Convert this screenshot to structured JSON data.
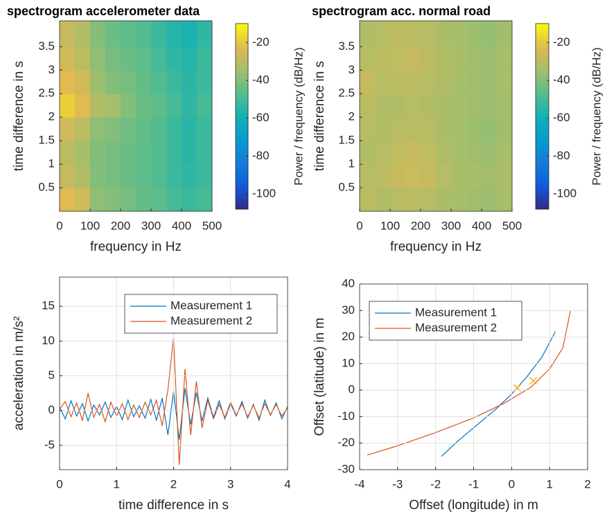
{
  "chart_data": [
    {
      "type": "heatmap",
      "title": "spectrogram accelerometer data",
      "xlabel": "frequency in Hz",
      "ylabel": "time difference in s",
      "colorbar_label": "Power / frequency (dB/Hz)",
      "colormap": "parula",
      "x": [
        25,
        75,
        125,
        175,
        225,
        275,
        325,
        375,
        425,
        475
      ],
      "y": [
        0.25,
        0.75,
        1.25,
        1.75,
        2.25,
        2.75,
        3.25,
        3.75
      ],
      "z": [
        [
          -22,
          -26,
          -38,
          -40,
          -42,
          -45,
          -46,
          -50,
          -52,
          -50
        ],
        [
          -28,
          -32,
          -40,
          -42,
          -44,
          -46,
          -48,
          -52,
          -54,
          -52
        ],
        [
          -30,
          -34,
          -40,
          -42,
          -44,
          -46,
          -48,
          -52,
          -55,
          -52
        ],
        [
          -26,
          -30,
          -38,
          -40,
          -43,
          -45,
          -48,
          -52,
          -55,
          -52
        ],
        [
          -18,
          -22,
          -32,
          -34,
          -40,
          -44,
          -46,
          -50,
          -54,
          -50
        ],
        [
          -22,
          -26,
          -36,
          -40,
          -42,
          -45,
          -48,
          -52,
          -55,
          -52
        ],
        [
          -26,
          -30,
          -38,
          -42,
          -44,
          -46,
          -50,
          -54,
          -56,
          -52
        ],
        [
          -28,
          -32,
          -40,
          -44,
          -46,
          -48,
          -52,
          -56,
          -58,
          -54
        ]
      ],
      "xlim": [
        0,
        500
      ],
      "xticks": [
        0,
        100,
        200,
        300,
        400,
        500
      ],
      "ylim": [
        0,
        4.05
      ],
      "yticks": [
        0.5,
        1,
        1.5,
        2,
        2.5,
        3,
        3.5
      ],
      "clim": [
        -108,
        -10
      ],
      "cticks": [
        -100,
        -80,
        -60,
        -40,
        -20
      ],
      "grid": false
    },
    {
      "type": "heatmap",
      "title": "spectrogram acc. normal road",
      "xlabel": "frequency in Hz",
      "ylabel": "time difference in s",
      "colorbar_label": "Power / frequency (dB/Hz)",
      "colormap": "parula",
      "x": [
        25,
        75,
        125,
        175,
        225,
        275,
        325,
        375,
        425,
        475
      ],
      "y": [
        0.25,
        0.75,
        1.25,
        1.75,
        2.25,
        2.75,
        3.25,
        3.75
      ],
      "z": [
        [
          -30,
          -32,
          -31,
          -30,
          -31,
          -33,
          -34,
          -35,
          -36,
          -34
        ],
        [
          -31,
          -30,
          -28,
          -27,
          -28,
          -31,
          -33,
          -34,
          -35,
          -33
        ],
        [
          -32,
          -31,
          -29,
          -28,
          -29,
          -32,
          -34,
          -35,
          -36,
          -34
        ],
        [
          -31,
          -32,
          -31,
          -30,
          -31,
          -33,
          -34,
          -36,
          -37,
          -35
        ],
        [
          -30,
          -32,
          -32,
          -31,
          -32,
          -33,
          -34,
          -35,
          -36,
          -35
        ],
        [
          -28,
          -31,
          -30,
          -30,
          -31,
          -32,
          -34,
          -35,
          -36,
          -34
        ],
        [
          -31,
          -30,
          -29,
          -28,
          -30,
          -32,
          -33,
          -35,
          -36,
          -34
        ],
        [
          -32,
          -31,
          -30,
          -30,
          -31,
          -33,
          -34,
          -36,
          -37,
          -35
        ]
      ],
      "xlim": [
        0,
        500
      ],
      "xticks": [
        0,
        100,
        200,
        300,
        400,
        500
      ],
      "ylim": [
        0,
        4.05
      ],
      "yticks": [
        0.5,
        1,
        1.5,
        2,
        2.5,
        3,
        3.5
      ],
      "clim": [
        -108,
        -10
      ],
      "cticks": [
        -100,
        -80,
        -60,
        -40,
        -20
      ],
      "grid": false
    },
    {
      "type": "line",
      "xlabel": "time difference in s",
      "ylabel": "acceleration in m/s²",
      "x": [
        0,
        0.1,
        0.2,
        0.3,
        0.4,
        0.5,
        0.6,
        0.7,
        0.8,
        0.9,
        1,
        1.1,
        1.2,
        1.3,
        1.4,
        1.5,
        1.6,
        1.7,
        1.8,
        1.9,
        2,
        2.1,
        2.2,
        2.3,
        2.4,
        2.5,
        2.6,
        2.7,
        2.8,
        2.9,
        3,
        3.1,
        3.2,
        3.3,
        3.4,
        3.5,
        3.6,
        3.7,
        3.8,
        3.9,
        4
      ],
      "series": [
        {
          "name": "Measurement 1",
          "color": "#0072BD",
          "values": [
            0.5,
            -1.2,
            1.4,
            -0.8,
            1.0,
            -1.5,
            0.8,
            -0.6,
            1.2,
            -1.0,
            0.6,
            -1.3,
            1.5,
            -0.9,
            0.7,
            -1.1,
            1.6,
            -1.4,
            1.8,
            -3.5,
            2.8,
            -4.2,
            3.2,
            -2.0,
            2.6,
            -1.5,
            1.8,
            -1.0,
            1.4,
            -1.2,
            1.0,
            -0.8,
            1.3,
            -1.1,
            0.9,
            -1.4,
            1.5,
            -0.7,
            1.1,
            -1.2,
            0.6
          ]
        },
        {
          "name": "Measurement 2",
          "color": "#D95319",
          "values": [
            0.2,
            1.3,
            -0.9,
            1.1,
            -1.4,
            2.5,
            -1.0,
            0.9,
            -1.6,
            1.2,
            -0.8,
            1.0,
            -1.3,
            0.8,
            -1.0,
            1.2,
            -0.6,
            1.5,
            -2.2,
            3.0,
            10.5,
            -7.8,
            6.0,
            -3.5,
            4.2,
            -2.5,
            1.5,
            -1.2,
            0.9,
            -1.0,
            1.2,
            -0.7,
            1.0,
            -0.9,
            0.8,
            -1.1,
            1.0,
            -0.6,
            0.9,
            -0.8,
            0.4
          ]
        }
      ],
      "xlim": [
        0,
        4
      ],
      "xticks": [
        0,
        1,
        2,
        3,
        4
      ],
      "ylim": [
        -8.5,
        19.2
      ],
      "yticks": [
        -5,
        0,
        5,
        10,
        15
      ],
      "grid": true,
      "legend": "northeast"
    },
    {
      "type": "line",
      "xlabel": "Offset (longitude) in m",
      "ylabel": "Offset (latitude) in m",
      "series": [
        {
          "name": "Measurement 1",
          "color": "#0072BD",
          "x": [
            -1.85,
            -1.4,
            -0.9,
            -0.4,
            0,
            0.4,
            0.8,
            1.15
          ],
          "values": [
            -25,
            -19,
            -13,
            -7,
            -1.5,
            5,
            12.5,
            22
          ]
        },
        {
          "name": "Measurement 2",
          "color": "#D95319",
          "x": [
            -3.8,
            -3,
            -2,
            -1,
            -0.2,
            0.5,
            1,
            1.35,
            1.55
          ],
          "values": [
            -24.5,
            -21,
            -16,
            -10.5,
            -5,
            1,
            8,
            16,
            30
          ]
        }
      ],
      "markers": {
        "color": "#EDB120",
        "x": [
          0.15,
          0.57
        ],
        "values": [
          0.8,
          3.5
        ]
      },
      "xlim": [
        -4,
        2
      ],
      "xticks": [
        -4,
        -3,
        -2,
        -1,
        0,
        1,
        2
      ],
      "ylim": [
        -30,
        40
      ],
      "yticks": [
        -30,
        -20,
        -10,
        0,
        10,
        20,
        30,
        40
      ],
      "grid": true,
      "legend": "northwest"
    }
  ]
}
